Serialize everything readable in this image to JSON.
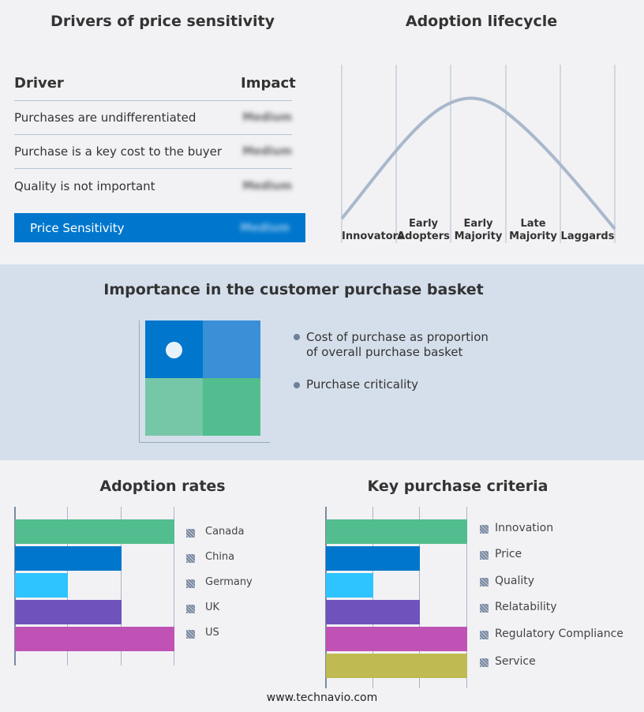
{
  "drivers": {
    "title": "Drivers of price sensitivity",
    "col_driver": "Driver",
    "col_impact": "Impact",
    "rows": [
      {
        "driver": "Purchases are undifferentiated",
        "impact": "Medium"
      },
      {
        "driver": "Purchase is a key cost to the buyer",
        "impact": "Medium"
      },
      {
        "driver": "Quality is not important",
        "impact": "Medium"
      }
    ],
    "summary": {
      "label": "Price Sensitivity",
      "impact": "Medium"
    }
  },
  "lifecycle": {
    "title": "Adoption lifecycle",
    "stages": [
      [
        "",
        "Innovators"
      ],
      [
        "Early",
        "Adopters"
      ],
      [
        "Early",
        "Majority"
      ],
      [
        "Late",
        "Majority"
      ],
      [
        "",
        "Laggards"
      ]
    ]
  },
  "basket": {
    "title": "Importance in the customer purchase basket",
    "legend": [
      "Cost of purchase as proportion of overall purchase basket",
      "Purchase criticality"
    ],
    "colors": [
      "#0077cc",
      "#3a8fd6",
      "#76c6a8",
      "#52bd8e"
    ]
  },
  "chart_data": [
    {
      "type": "bar",
      "title": "Adoption rates",
      "categories": [
        "Canada",
        "China",
        "Germany",
        "UK",
        "US"
      ],
      "values": [
        3,
        2,
        1,
        2,
        3
      ],
      "xlim": [
        0,
        3
      ],
      "colors": [
        "#52bd8e",
        "#0077cc",
        "#2ec4ff",
        "#6f52bb",
        "#c052b5"
      ],
      "grid": true,
      "legend": "right"
    },
    {
      "type": "bar",
      "title": "Key purchase criteria",
      "categories": [
        "Innovation",
        "Price",
        "Quality",
        "Relatability",
        "Regulatory Compliance",
        "Service"
      ],
      "values": [
        3,
        2,
        1,
        2,
        3,
        3
      ],
      "xlim": [
        0,
        3
      ],
      "colors": [
        "#52bd8e",
        "#0077cc",
        "#2ec4ff",
        "#6f52bb",
        "#c052b5",
        "#bfbb52"
      ],
      "grid": true,
      "legend": "right"
    }
  ],
  "footer": "www.technavio.com"
}
